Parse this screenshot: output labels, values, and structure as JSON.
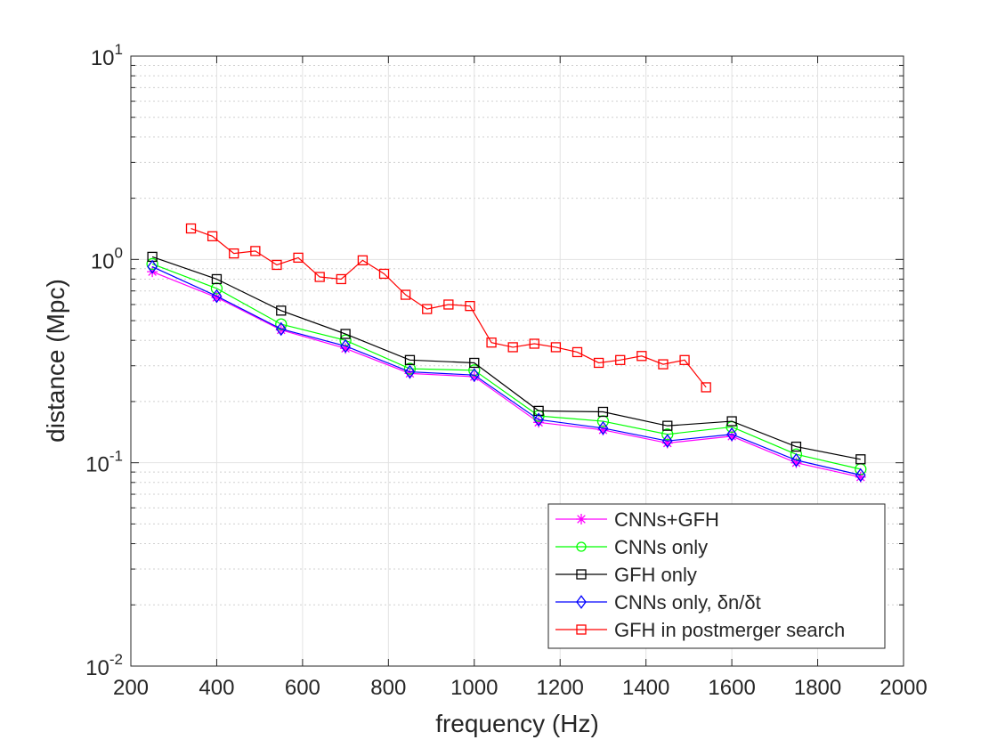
{
  "chart_data": {
    "type": "line",
    "title": "",
    "xlabel": "frequency (Hz)",
    "ylabel": "distance (Mpc)",
    "xlim": [
      200,
      2000
    ],
    "ylim": [
      0.01,
      10
    ],
    "yscale": "log",
    "grid": true,
    "minor_grid": true,
    "legend_position": "bottom-right",
    "x_ticks": [
      200,
      400,
      600,
      800,
      1000,
      1200,
      1400,
      1600,
      1800,
      2000
    ],
    "x_tick_labels": [
      "200",
      "400",
      "600",
      "800",
      "1000",
      "1200",
      "1400",
      "1600",
      "1800",
      "2000"
    ],
    "y_ticks": [
      0.01,
      0.1,
      1,
      10
    ],
    "y_tick_labels": [
      {
        "base": "10",
        "exp": "-2"
      },
      {
        "base": "10",
        "exp": "-1"
      },
      {
        "base": "10",
        "exp": "0"
      },
      {
        "base": "10",
        "exp": "1"
      }
    ],
    "series": [
      {
        "name": "CNNs+GFH",
        "color": "#ff00ff",
        "marker": "asterisk",
        "x": [
          250,
          400,
          550,
          700,
          850,
          1000,
          1150,
          1300,
          1450,
          1600,
          1750,
          1900
        ],
        "y": [
          0.87,
          0.65,
          0.45,
          0.365,
          0.275,
          0.265,
          0.158,
          0.145,
          0.125,
          0.135,
          0.1,
          0.085
        ]
      },
      {
        "name": "CNNs only",
        "color": "#00ff00",
        "marker": "circle",
        "x": [
          250,
          400,
          550,
          700,
          850,
          1000,
          1150,
          1300,
          1450,
          1600,
          1750,
          1900
        ],
        "y": [
          0.95,
          0.72,
          0.48,
          0.4,
          0.29,
          0.285,
          0.17,
          0.16,
          0.138,
          0.15,
          0.11,
          0.093
        ]
      },
      {
        "name": "GFH only",
        "color": "#000000",
        "marker": "square",
        "x": [
          250,
          400,
          550,
          700,
          850,
          1000,
          1150,
          1300,
          1450,
          1600,
          1750,
          1900
        ],
        "y": [
          1.03,
          0.8,
          0.56,
          0.43,
          0.32,
          0.31,
          0.18,
          0.178,
          0.152,
          0.16,
          0.12,
          0.104
        ]
      },
      {
        "name": "CNNs only, δn/δt",
        "color": "#0000ff",
        "marker": "diamond",
        "x": [
          250,
          400,
          550,
          700,
          850,
          1000,
          1150,
          1300,
          1450,
          1600,
          1750,
          1900
        ],
        "y": [
          0.92,
          0.66,
          0.455,
          0.375,
          0.28,
          0.27,
          0.163,
          0.148,
          0.128,
          0.138,
          0.103,
          0.087
        ]
      },
      {
        "name": "GFH in postmerger search",
        "color": "#ff0000",
        "marker": "square",
        "x": [
          340,
          390,
          440,
          490,
          540,
          590,
          640,
          690,
          740,
          790,
          840,
          890,
          940,
          990,
          1040,
          1090,
          1140,
          1190,
          1240,
          1290,
          1340,
          1390,
          1440,
          1490,
          1540
        ],
        "y": [
          1.42,
          1.3,
          1.07,
          1.1,
          0.94,
          1.02,
          0.82,
          0.8,
          0.99,
          0.85,
          0.67,
          0.57,
          0.6,
          0.59,
          0.39,
          0.37,
          0.385,
          0.37,
          0.35,
          0.31,
          0.32,
          0.335,
          0.305,
          0.32,
          0.235
        ]
      }
    ]
  }
}
